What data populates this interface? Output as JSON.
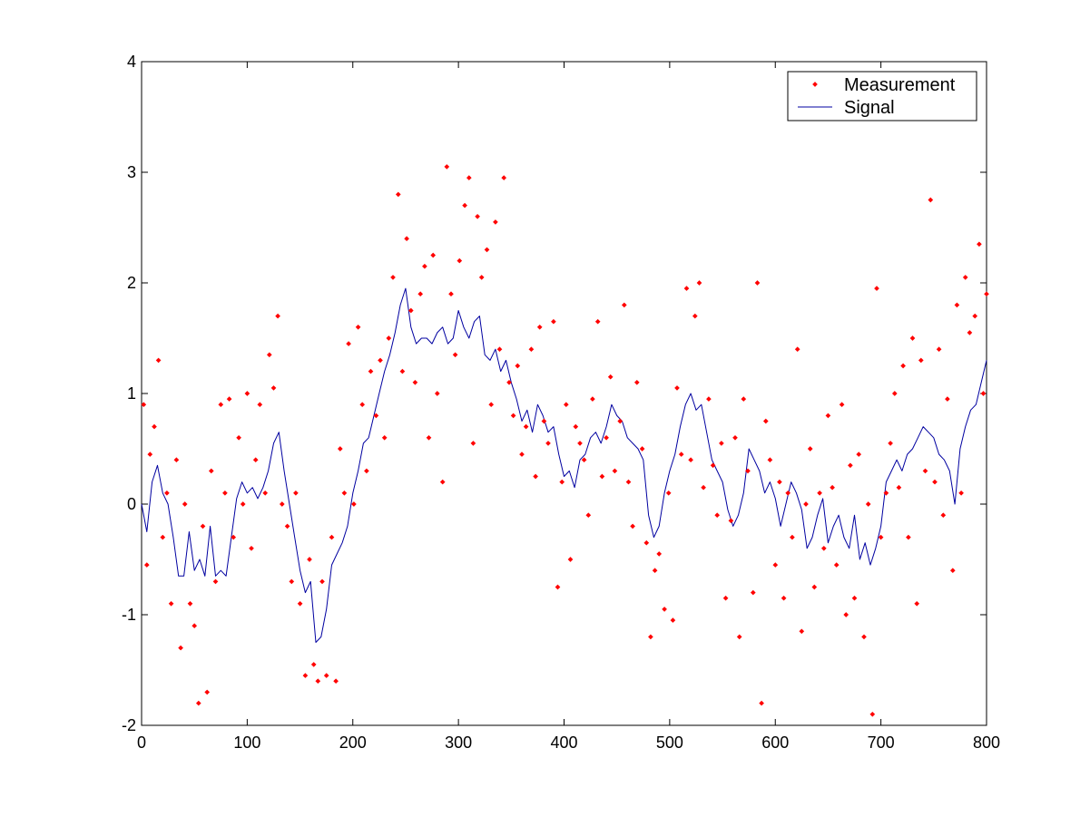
{
  "chart_data": {
    "type": "scatter",
    "title": "",
    "xlabel": "",
    "ylabel": "",
    "xlim": [
      0,
      800
    ],
    "ylim": [
      -2,
      4
    ],
    "xticks": [
      "0",
      "100",
      "200",
      "300",
      "400",
      "500",
      "600",
      "700",
      "800"
    ],
    "yticks": [
      "-2",
      "-1",
      "0",
      "1",
      "2",
      "3",
      "4"
    ],
    "grid": false,
    "legend_position": "top-right",
    "legend": [
      "Measurement",
      "Signal"
    ],
    "series": [
      {
        "name": "Signal",
        "type": "line",
        "color": "#0000a0",
        "x": [
          0,
          5,
          10,
          15,
          20,
          25,
          30,
          35,
          40,
          45,
          50,
          55,
          60,
          65,
          70,
          75,
          80,
          85,
          90,
          95,
          100,
          105,
          110,
          115,
          120,
          125,
          130,
          135,
          140,
          145,
          150,
          155,
          160,
          165,
          170,
          175,
          180,
          185,
          190,
          195,
          200,
          205,
          210,
          215,
          220,
          225,
          230,
          235,
          240,
          245,
          250,
          255,
          260,
          265,
          270,
          275,
          280,
          285,
          290,
          295,
          300,
          305,
          310,
          315,
          320,
          325,
          330,
          335,
          340,
          345,
          350,
          355,
          360,
          365,
          370,
          375,
          380,
          385,
          390,
          395,
          400,
          405,
          410,
          415,
          420,
          425,
          430,
          435,
          440,
          445,
          450,
          455,
          460,
          465,
          470,
          475,
          480,
          485,
          490,
          495,
          500,
          505,
          510,
          515,
          520,
          525,
          530,
          535,
          540,
          545,
          550,
          555,
          560,
          565,
          570,
          575,
          580,
          585,
          590,
          595,
          600,
          605,
          610,
          615,
          620,
          625,
          630,
          635,
          640,
          645,
          650,
          655,
          660,
          665,
          670,
          675,
          680,
          685,
          690,
          695,
          700,
          705,
          710,
          715,
          720,
          725,
          730,
          735,
          740,
          745,
          750,
          755,
          760,
          765,
          770,
          775,
          780,
          785,
          790,
          795,
          800
        ],
        "y": [
          0.0,
          -0.25,
          0.2,
          0.35,
          0.1,
          0.0,
          -0.3,
          -0.65,
          -0.65,
          -0.25,
          -0.6,
          -0.5,
          -0.65,
          -0.2,
          -0.65,
          -0.6,
          -0.65,
          -0.3,
          0.05,
          0.2,
          0.1,
          0.15,
          0.05,
          0.15,
          0.3,
          0.55,
          0.65,
          0.3,
          0.0,
          -0.3,
          -0.6,
          -0.8,
          -0.7,
          -1.25,
          -1.2,
          -0.95,
          -0.55,
          -0.45,
          -0.35,
          -0.2,
          0.1,
          0.3,
          0.55,
          0.6,
          0.8,
          1.0,
          1.2,
          1.35,
          1.55,
          1.8,
          1.95,
          1.6,
          1.45,
          1.5,
          1.5,
          1.45,
          1.55,
          1.6,
          1.45,
          1.5,
          1.75,
          1.6,
          1.5,
          1.65,
          1.7,
          1.35,
          1.3,
          1.4,
          1.2,
          1.3,
          1.1,
          0.95,
          0.75,
          0.85,
          0.65,
          0.9,
          0.8,
          0.65,
          0.7,
          0.45,
          0.25,
          0.3,
          0.15,
          0.4,
          0.45,
          0.6,
          0.65,
          0.55,
          0.7,
          0.9,
          0.8,
          0.75,
          0.6,
          0.55,
          0.5,
          0.4,
          -0.1,
          -0.3,
          -0.2,
          0.1,
          0.3,
          0.45,
          0.7,
          0.9,
          1.0,
          0.85,
          0.9,
          0.65,
          0.4,
          0.3,
          0.2,
          -0.05,
          -0.2,
          -0.1,
          0.1,
          0.5,
          0.4,
          0.3,
          0.1,
          0.2,
          0.05,
          -0.2,
          0.0,
          0.2,
          0.1,
          -0.05,
          -0.4,
          -0.3,
          -0.1,
          0.05,
          -0.35,
          -0.2,
          -0.1,
          -0.3,
          -0.4,
          -0.1,
          -0.5,
          -0.35,
          -0.55,
          -0.4,
          -0.2,
          0.2,
          0.3,
          0.4,
          0.3,
          0.45,
          0.5,
          0.6,
          0.7,
          0.65,
          0.6,
          0.45,
          0.4,
          0.3,
          0.0,
          0.5,
          0.7,
          0.85,
          0.9,
          1.1,
          1.3
        ]
      },
      {
        "name": "Measurement",
        "type": "scatter",
        "color": "#ff0000",
        "x": [
          2,
          5,
          8,
          12,
          16,
          20,
          24,
          28,
          33,
          37,
          41,
          46,
          50,
          54,
          58,
          62,
          66,
          70,
          75,
          79,
          83,
          87,
          92,
          96,
          100,
          104,
          108,
          112,
          117,
          121,
          125,
          129,
          133,
          138,
          142,
          146,
          150,
          155,
          159,
          163,
          167,
          171,
          175,
          180,
          184,
          188,
          192,
          196,
          201,
          205,
          209,
          213,
          217,
          222,
          226,
          230,
          234,
          238,
          243,
          247,
          251,
          255,
          259,
          264,
          268,
          272,
          276,
          280,
          285,
          289,
          293,
          297,
          301,
          306,
          310,
          314,
          318,
          322,
          327,
          331,
          335,
          339,
          343,
          348,
          352,
          356,
          360,
          364,
          369,
          373,
          377,
          381,
          385,
          390,
          394,
          398,
          402,
          406,
          411,
          415,
          419,
          423,
          427,
          432,
          436,
          440,
          444,
          448,
          453,
          457,
          461,
          465,
          469,
          474,
          478,
          482,
          486,
          490,
          495,
          499,
          503,
          507,
          511,
          516,
          520,
          524,
          528,
          532,
          537,
          541,
          545,
          549,
          553,
          558,
          562,
          566,
          570,
          574,
          579,
          583,
          587,
          591,
          595,
          600,
          604,
          608,
          612,
          616,
          621,
          625,
          629,
          633,
          637,
          642,
          646,
          650,
          654,
          658,
          663,
          667,
          671,
          675,
          679,
          684,
          688,
          692,
          696,
          700,
          705,
          709,
          713,
          717,
          721,
          726,
          730,
          734,
          738,
          742,
          747,
          751,
          755,
          759,
          763,
          768,
          772,
          776,
          780,
          784,
          789,
          793,
          797,
          800
        ],
        "y": [
          0.9,
          -0.55,
          0.45,
          0.7,
          1.3,
          -0.3,
          0.1,
          -0.9,
          0.4,
          -1.3,
          0.0,
          -0.9,
          -1.1,
          -1.8,
          -0.2,
          -1.7,
          0.3,
          -0.7,
          0.9,
          0.1,
          0.95,
          -0.3,
          0.6,
          0.0,
          1.0,
          -0.4,
          0.4,
          0.9,
          0.1,
          1.35,
          1.05,
          1.7,
          0.0,
          -0.2,
          -0.7,
          0.1,
          -0.9,
          -1.55,
          -0.5,
          -1.45,
          -1.6,
          -0.7,
          -1.55,
          -0.3,
          -1.6,
          0.5,
          0.1,
          1.45,
          0.0,
          1.6,
          0.9,
          0.3,
          1.2,
          0.8,
          1.3,
          0.6,
          1.5,
          2.05,
          2.8,
          1.2,
          2.4,
          1.75,
          1.1,
          1.9,
          2.15,
          0.6,
          2.25,
          1.0,
          0.2,
          3.05,
          1.9,
          1.35,
          2.2,
          2.7,
          2.95,
          0.55,
          2.6,
          2.05,
          2.3,
          0.9,
          2.55,
          1.4,
          2.95,
          1.1,
          0.8,
          1.25,
          0.45,
          0.7,
          1.4,
          0.25,
          1.6,
          0.75,
          0.55,
          1.65,
          -0.75,
          0.2,
          0.9,
          -0.5,
          0.7,
          0.55,
          0.4,
          -0.1,
          0.95,
          1.65,
          0.25,
          0.6,
          1.15,
          0.3,
          0.75,
          1.8,
          0.2,
          -0.2,
          1.1,
          0.5,
          -0.35,
          -1.2,
          -0.6,
          -0.45,
          -0.95,
          0.1,
          -1.05,
          1.05,
          0.45,
          1.95,
          0.4,
          1.7,
          2.0,
          0.15,
          0.95,
          0.35,
          -0.1,
          0.55,
          -0.85,
          -0.15,
          0.6,
          -1.2,
          0.95,
          0.3,
          -0.8,
          2.0,
          -1.8,
          0.75,
          0.4,
          -0.55,
          0.2,
          -0.85,
          0.1,
          -0.3,
          1.4,
          -1.15,
          0.0,
          0.5,
          -0.75,
          0.1,
          -0.4,
          0.8,
          0.15,
          -0.55,
          0.9,
          -1.0,
          0.35,
          -0.85,
          0.45,
          -1.2,
          0.0,
          -1.9,
          1.95,
          -0.3,
          0.1,
          0.55,
          1.0,
          0.15,
          1.25,
          -0.3,
          1.5,
          -0.9,
          1.3,
          0.3,
          2.75,
          0.2,
          1.4,
          -0.1,
          0.95,
          -0.6,
          1.8,
          0.1,
          2.05,
          1.55,
          1.7,
          2.35,
          1.0,
          1.9
        ]
      }
    ]
  }
}
